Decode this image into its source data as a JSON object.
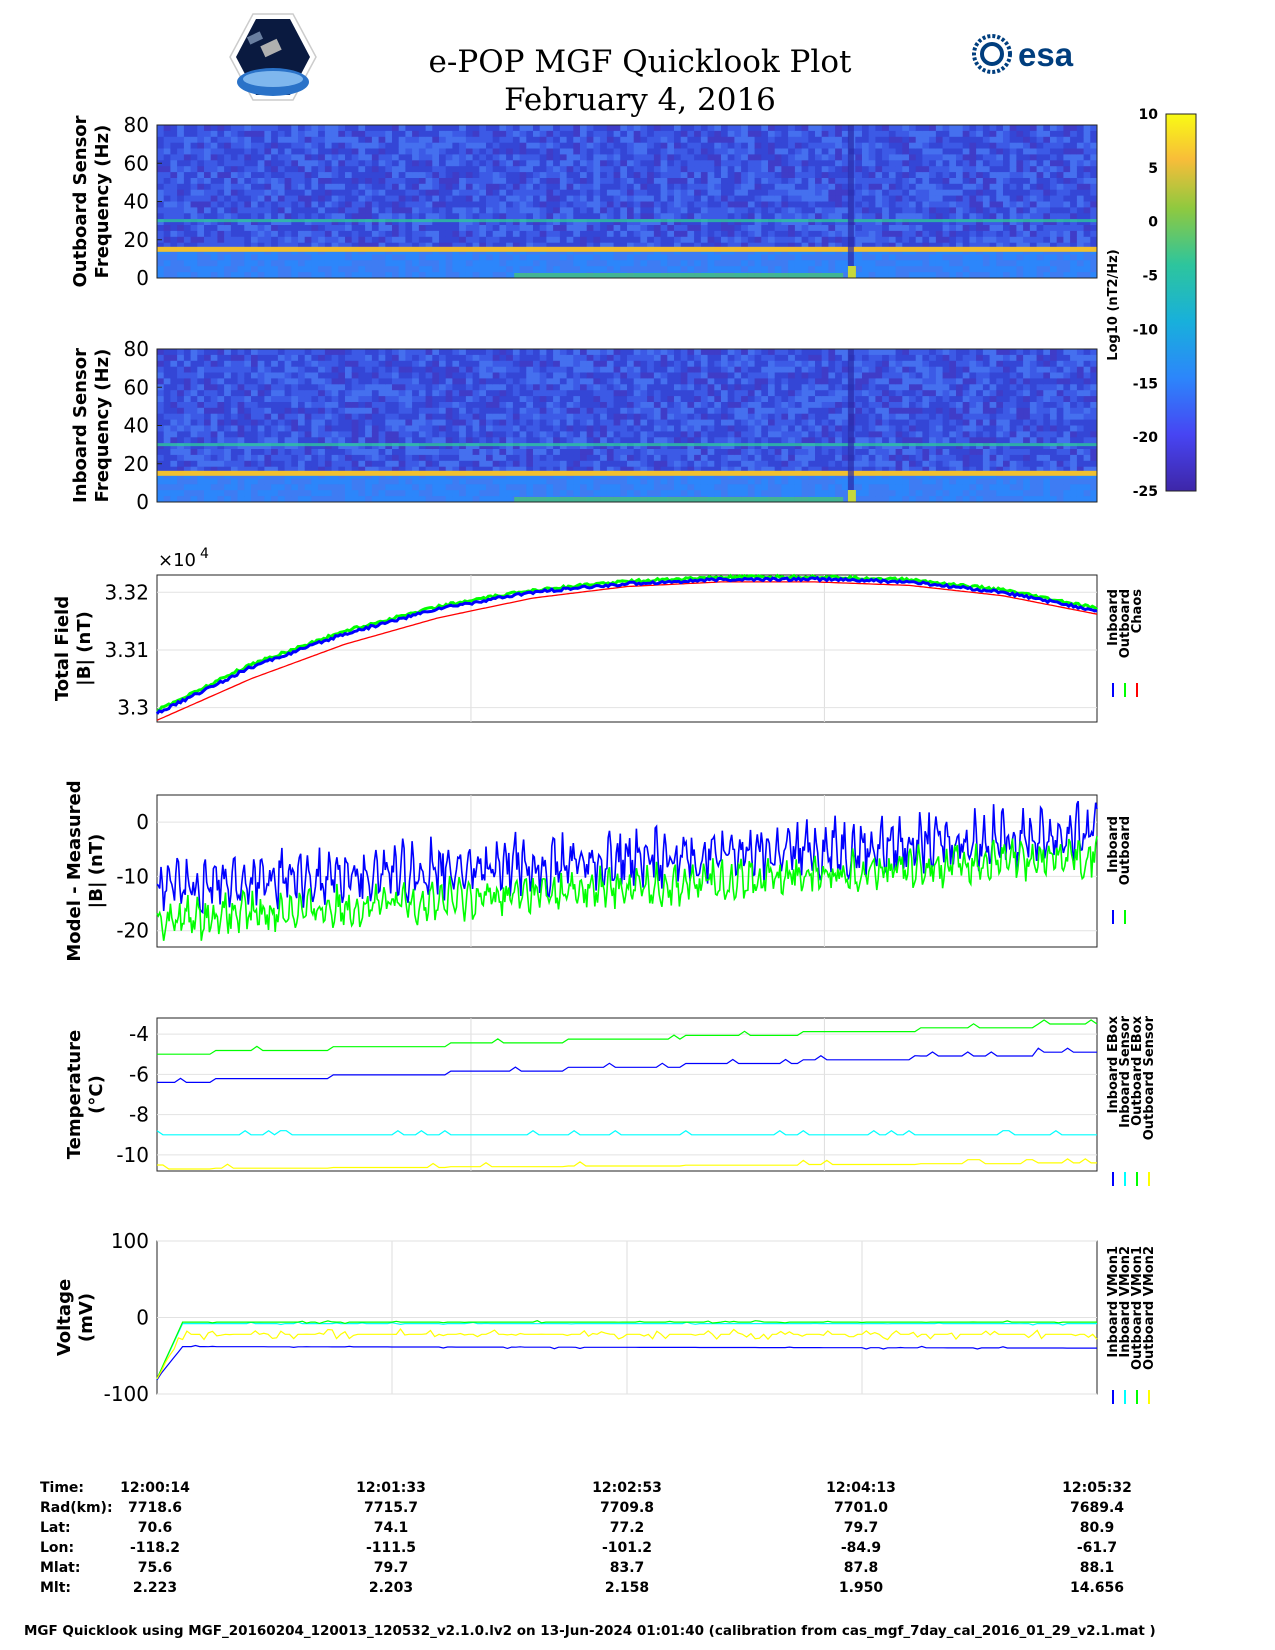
{
  "header": {
    "title": "e-POP MGF Quicklook Plot",
    "date": "February 4, 2016",
    "logo_right_text": "esa"
  },
  "colorbar": {
    "ticks": [
      "10",
      "5",
      "0",
      "-5",
      "-10",
      "-15",
      "-20",
      "-25"
    ],
    "label": "Log10 (nT2/Hz)"
  },
  "chart_data": [
    {
      "type": "heatmap",
      "name": "outboard-spectrogram",
      "ylabel": "Outboard Sensor Frequency (Hz)",
      "ylim": [
        0,
        80
      ],
      "yticks": [
        "0",
        "20",
        "40",
        "60",
        "80"
      ],
      "features": {
        "bright_line_hz": 15,
        "faint_line_hz": 30,
        "clim": [
          -25,
          10
        ]
      }
    },
    {
      "type": "heatmap",
      "name": "inboard-spectrogram",
      "ylabel": "Inboard Sensor Frequency (Hz)",
      "ylim": [
        0,
        80
      ],
      "yticks": [
        "0",
        "20",
        "40",
        "60",
        "80"
      ],
      "features": {
        "bright_line_hz": 15,
        "faint_line_hz": 30,
        "clim": [
          -25,
          10
        ]
      }
    },
    {
      "type": "line",
      "name": "total-field",
      "ylabel": "Total Field |B| (nT)",
      "exponent_label": "×10",
      "exponent_power": "4",
      "yticks": [
        "3.3",
        "3.31",
        "3.32"
      ],
      "ylim": [
        32975,
        33230
      ],
      "x": [
        0,
        0.1,
        0.2,
        0.3,
        0.4,
        0.5,
        0.6,
        0.7,
        0.8,
        0.9,
        1.0
      ],
      "series": [
        {
          "name": "Inboard",
          "color": "#0000ff",
          "values": [
            32990,
            33070,
            33128,
            33172,
            33200,
            33215,
            33222,
            33223,
            33218,
            33200,
            33168
          ]
        },
        {
          "name": "Outboard",
          "color": "#00ff00",
          "values": [
            32995,
            33075,
            33133,
            33176,
            33204,
            33219,
            33226,
            33227,
            33222,
            33204,
            33172
          ]
        },
        {
          "name": "Chaos",
          "color": "#ff0000",
          "values": [
            32978,
            33050,
            33110,
            33156,
            33190,
            33210,
            33218,
            33218,
            33212,
            33194,
            33162
          ]
        }
      ]
    },
    {
      "type": "line",
      "name": "model-minus-measured",
      "ylabel": "Model - Measured |B| (nT)",
      "yticks": [
        "0",
        "-10",
        "-20"
      ],
      "ylim": [
        -23,
        5
      ],
      "series": [
        {
          "name": "Inboard",
          "color": "#0000ff",
          "start": -12,
          "end": -2,
          "amplitude": 5
        },
        {
          "name": "Outboard",
          "color": "#00ff00",
          "start": -18,
          "end": -6,
          "amplitude": 3.5
        }
      ]
    },
    {
      "type": "line",
      "name": "temperature",
      "ylabel": "Temperature (°C)",
      "yticks": [
        "-4",
        "-6",
        "-8",
        "-10"
      ],
      "ylim": [
        -10.8,
        -3.2
      ],
      "series": [
        {
          "name": "Inboard EBox",
          "color": "#0000ff",
          "start": -6.4,
          "end": -4.9
        },
        {
          "name": "Inboard Sensor",
          "color": "#00ffff",
          "start": -9.0,
          "end": -9.0
        },
        {
          "name": "Outboard EBox",
          "color": "#00ff00",
          "start": -5.0,
          "end": -3.5
        },
        {
          "name": "Outboard Sensor",
          "color": "#ffff00",
          "start": -10.7,
          "end": -10.4
        }
      ]
    },
    {
      "type": "line",
      "name": "voltage",
      "ylabel": "Voltage (mV)",
      "yticks": [
        "100",
        "0",
        "-100"
      ],
      "ylim": [
        -100,
        100
      ],
      "series": [
        {
          "name": "Inboard VMon1",
          "color": "#0000ff",
          "start": -38,
          "end": -40
        },
        {
          "name": "Inboard VMon2",
          "color": "#00ffff",
          "start": -8,
          "end": -8
        },
        {
          "name": "Outboard VMon1",
          "color": "#00ff00",
          "start": -6,
          "end": -6
        },
        {
          "name": "Outboard VMon2",
          "color": "#ffff00",
          "start": -22,
          "end": -22
        }
      ]
    }
  ],
  "ephemeris": {
    "labels": [
      "Time:",
      "Rad(km):",
      "Lat:",
      "Lon:",
      "Mlat:",
      "Mlt:"
    ],
    "columns": [
      {
        "time": "12:00:14",
        "rad": "7718.6",
        "lat": "70.6",
        "lon": "-118.2",
        "mlat": "75.6",
        "mlt": "2.223"
      },
      {
        "time": "12:01:33",
        "rad": "7715.7",
        "lat": "74.1",
        "lon": "-111.5",
        "mlat": "79.7",
        "mlt": "2.203"
      },
      {
        "time": "12:02:53",
        "rad": "7709.8",
        "lat": "77.2",
        "lon": "-101.2",
        "mlat": "83.7",
        "mlt": "2.158"
      },
      {
        "time": "12:04:13",
        "rad": "7701.0",
        "lat": "79.7",
        "lon": "-84.9",
        "mlat": "87.8",
        "mlt": "1.950"
      },
      {
        "time": "12:05:32",
        "rad": "7689.4",
        "lat": "80.9",
        "lon": "-61.7",
        "mlat": "88.1",
        "mlt": "14.656"
      }
    ]
  },
  "footer": "MGF Quicklook using MGF_20160204_120013_120532_v2.1.0.lv2 on 13-Jun-2024 01:01:40 (calibration from cas_mgf_7day_cal_2016_01_29_v2.1.mat )"
}
